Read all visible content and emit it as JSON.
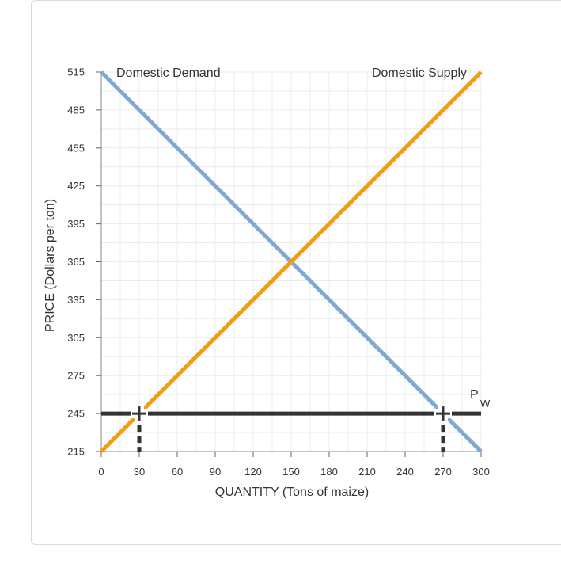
{
  "chart_data": {
    "type": "line",
    "xlabel": "QUANTITY (Tons of maize)",
    "ylabel": "PRICE (Dollars per ton)",
    "xlim": [
      0,
      300
    ],
    "ylim": [
      215,
      515
    ],
    "xticks": [
      0,
      30,
      60,
      90,
      120,
      150,
      180,
      210,
      240,
      270,
      300
    ],
    "yticks": [
      215,
      245,
      275,
      305,
      335,
      365,
      395,
      425,
      455,
      485,
      515
    ],
    "grid": true,
    "series": [
      {
        "name": "Domestic Demand",
        "color": "#7fa9d2",
        "x": [
          0,
          300
        ],
        "y": [
          515,
          215
        ]
      },
      {
        "name": "Domestic Supply",
        "color": "#f39c12",
        "x": [
          0,
          300
        ],
        "y": [
          215,
          515
        ]
      }
    ],
    "world_price": {
      "label": "P",
      "subscript": "W",
      "value": 245,
      "color": "#333333"
    },
    "markers": [
      {
        "x": 30,
        "y": 245
      },
      {
        "x": 270,
        "y": 245
      }
    ]
  }
}
